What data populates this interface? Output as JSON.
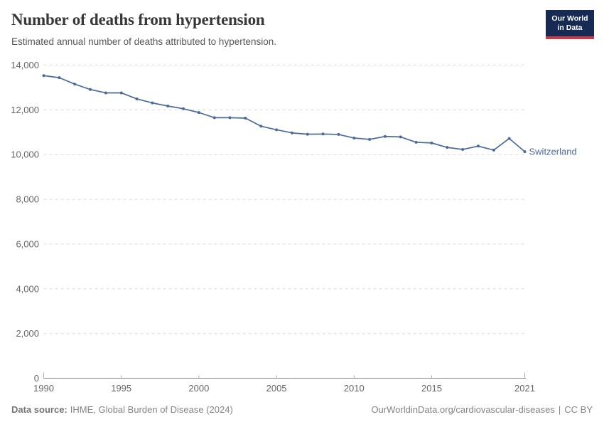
{
  "header": {
    "title": "Number of deaths from hypertension",
    "subtitle": "Estimated annual number of deaths attributed to hypertension.",
    "logo": {
      "line1": "Our World",
      "line2": "in Data"
    }
  },
  "chart_data": {
    "type": "line",
    "title": "Number of deaths from hypertension",
    "subtitle": "Estimated annual number of deaths attributed to hypertension.",
    "x": [
      1990,
      1991,
      1992,
      1993,
      1994,
      1995,
      1996,
      1997,
      1998,
      1999,
      2000,
      2001,
      2002,
      2003,
      2004,
      2005,
      2006,
      2007,
      2008,
      2009,
      2010,
      2011,
      2012,
      2013,
      2014,
      2015,
      2016,
      2017,
      2018,
      2019,
      2020,
      2021
    ],
    "series": [
      {
        "name": "Switzerland",
        "color": "#4C6A9C",
        "values": [
          13530,
          13440,
          13150,
          12910,
          12760,
          12760,
          12490,
          12310,
          12170,
          12050,
          11880,
          11650,
          11650,
          11630,
          11270,
          11110,
          10970,
          10910,
          10920,
          10900,
          10740,
          10680,
          10810,
          10790,
          10550,
          10520,
          10320,
          10230,
          10380,
          10200,
          10720,
          10130
        ]
      }
    ],
    "x_ticks": [
      1990,
      1995,
      2000,
      2005,
      2010,
      2015,
      2021
    ],
    "y_ticks": [
      0,
      2000,
      4000,
      6000,
      8000,
      10000,
      12000,
      14000
    ],
    "xlim": [
      1990,
      2021
    ],
    "ylim": [
      0,
      14000
    ],
    "xlabel": "",
    "ylabel": "",
    "grid": "horizontal-dashed",
    "legend_position": "end-of-line"
  },
  "footer": {
    "source_label": "Data source:",
    "source_value": "IHME, Global Burden of Disease (2024)",
    "link": "OurWorldinData.org/cardiovascular-diseases",
    "separator": "|",
    "license": "CC BY"
  },
  "colors": {
    "series": "#4C6A9C",
    "end_label": "#4C6A9C",
    "grid": "#DBDBDB",
    "axis": "#8F8F8F",
    "tick": "#A8A8A8",
    "tick_label": "#666666",
    "title": "#383838",
    "subtitle": "#575757",
    "footer": "#858585",
    "logo_bg": "#172A54",
    "logo_stripe": "#CA3A46"
  }
}
